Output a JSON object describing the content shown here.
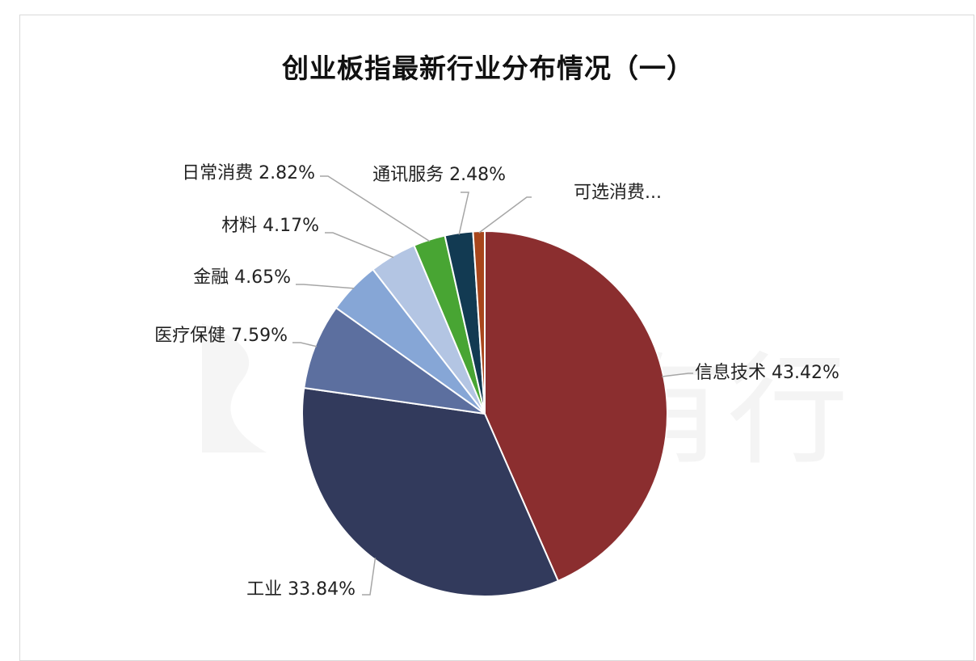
{
  "chart_data": {
    "type": "pie",
    "title": "创业板指最新行业分布情况（一）",
    "slices": [
      {
        "name": "信息技术",
        "value": 43.42,
        "label": "信息技术 43.42%",
        "color": "#8b2e2f"
      },
      {
        "name": "工业",
        "value": 33.84,
        "label": "工业 33.84%",
        "color": "#323a5c"
      },
      {
        "name": "医疗保健",
        "value": 7.59,
        "label": "医疗保健 7.59%",
        "color": "#5c6f9f"
      },
      {
        "name": "金融",
        "value": 4.65,
        "label": "金融 4.65%",
        "color": "#86a6d6"
      },
      {
        "name": "材料",
        "value": 4.17,
        "label": "材料 4.17%",
        "color": "#b3c5e3"
      },
      {
        "name": "日常消费",
        "value": 2.82,
        "label": "日常消费 2.82%",
        "color": "#48a533"
      },
      {
        "name": "通讯服务",
        "value": 2.48,
        "label": "通讯服务 2.48%",
        "color": "#123a52"
      },
      {
        "name": "可选消费",
        "value": 1.03,
        "label": "可选消费...",
        "color": "#a8461c"
      }
    ],
    "legend": "none",
    "watermark": "有知有行"
  }
}
